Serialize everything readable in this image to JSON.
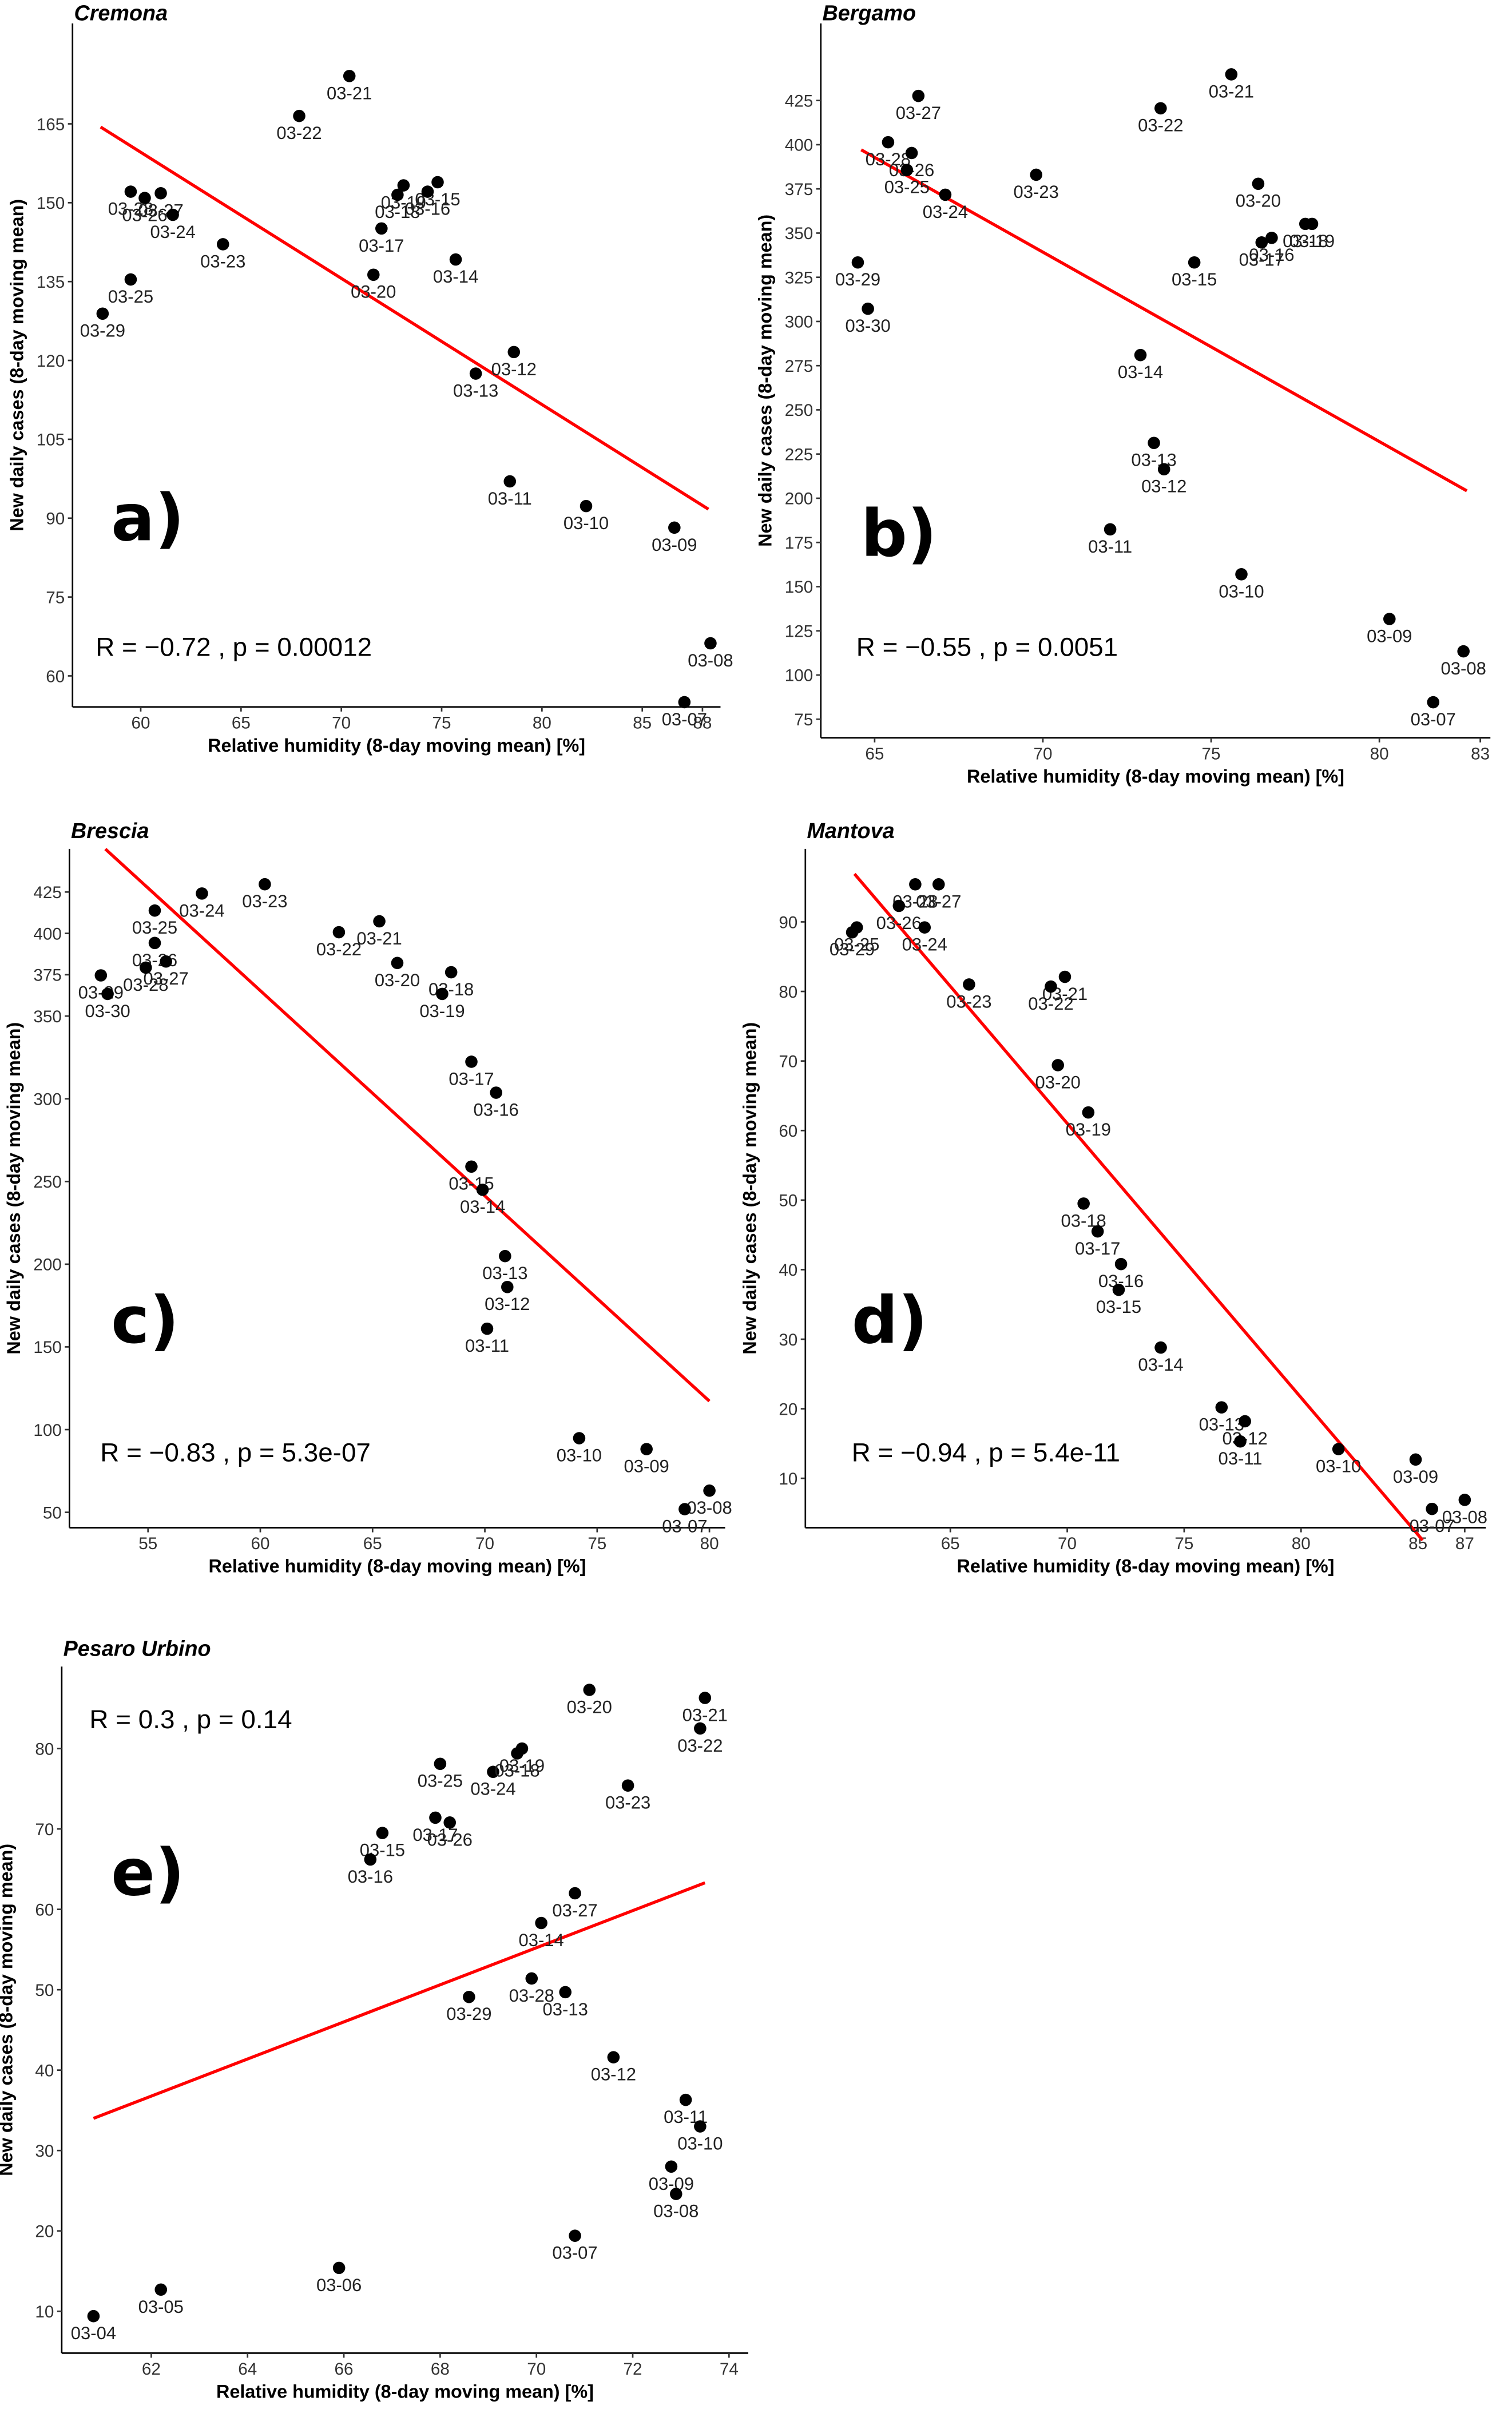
{
  "chart_data": [
    {
      "type": "scatter",
      "title": "Cremona",
      "panel_label": "a)",
      "annotation": "R = −0.72 , p = 0.00012",
      "x_label": "Relative humidity (8-day moving mean) [%]",
      "y_label": "New daily cases (8-day moving mean)",
      "color": "#000000",
      "trend_color": "#ff0000",
      "labels": [
        "03-21",
        "03-22",
        "03-28",
        "03-26",
        "03-27",
        "03-24",
        "03-23",
        "03-19",
        "03-15",
        "03-16",
        "03-18",
        "03-17",
        "03-14",
        "03-20",
        "03-25",
        "03-29",
        "03-12",
        "03-13",
        "03-11",
        "03-10",
        "03-09",
        "03-08",
        "03-07"
      ],
      "x": [
        70.4,
        67.9,
        59.5,
        60.2,
        61.0,
        61.6,
        64.1,
        73.1,
        74.8,
        74.3,
        72.8,
        72.0,
        75.7,
        71.6,
        59.5,
        58.1,
        78.6,
        76.7,
        78.4,
        82.2,
        86.6,
        88.4,
        87.1
      ],
      "y": [
        174.1,
        166.5,
        152.1,
        150.9,
        151.8,
        147.7,
        142.1,
        153.3,
        153.9,
        152.1,
        151.5,
        145.1,
        139.2,
        136.3,
        135.4,
        128.9,
        121.6,
        117.5,
        97.0,
        92.3,
        88.2,
        66.2,
        55.0
      ],
      "trend_x": [
        58.0,
        88.3
      ],
      "trend_y": [
        164.4,
        91.7
      ],
      "xlim": [
        56.6,
        88.9
      ],
      "ylim": [
        54.1,
        184.1
      ],
      "xticks": [
        60,
        65,
        70,
        75,
        80,
        85,
        88
      ],
      "yticks": [
        60,
        75,
        90,
        105,
        120,
        135,
        150,
        165
      ]
    },
    {
      "type": "scatter",
      "title": "Bergamo",
      "panel_label": "b)",
      "annotation": "R = −0.55 , p = 0.0051",
      "x_label": "Relative humidity (8-day moving mean) [%]",
      "y_label": "New daily cases (8-day moving mean)",
      "color": "#000000",
      "trend_color": "#ff0000",
      "labels": [
        "03-21",
        "03-27",
        "03-22",
        "03-28",
        "03-26",
        "03-25",
        "03-24",
        "03-23",
        "03-20",
        "03-18",
        "03-19",
        "03-16",
        "03-17",
        "03-15",
        "03-29",
        "03-30",
        "03-14",
        "03-13",
        "03-12",
        "03-11",
        "03-10",
        "03-09",
        "03-08",
        "03-07"
      ],
      "x": [
        75.6,
        66.3,
        73.5,
        65.4,
        66.1,
        65.96,
        67.1,
        69.8,
        76.4,
        77.8,
        78.0,
        76.8,
        76.5,
        74.5,
        64.5,
        64.8,
        72.9,
        73.3,
        73.6,
        72.0,
        75.9,
        80.3,
        82.5,
        81.6
      ],
      "y": [
        439.8,
        427.6,
        420.6,
        401.4,
        395.3,
        385.7,
        371.7,
        383.0,
        377.9,
        355.2,
        355.2,
        347.3,
        344.7,
        333.4,
        333.4,
        307.2,
        281.0,
        231.3,
        216.4,
        182.4,
        157.0,
        131.7,
        113.4,
        84.6
      ],
      "trend_x": [
        64.6,
        82.6
      ],
      "trend_y": [
        397.1,
        204.2
      ],
      "xlim": [
        63.4,
        83.3
      ],
      "ylim": [
        64.5,
        468.6
      ],
      "xticks": [
        65,
        70,
        75,
        80,
        83
      ],
      "yticks": [
        75,
        100,
        125,
        150,
        175,
        200,
        225,
        250,
        275,
        300,
        325,
        350,
        375,
        400,
        425
      ]
    },
    {
      "type": "scatter",
      "title": "Brescia",
      "panel_label": "c)",
      "annotation": "R = −0.83 , p = 5.3e-07",
      "x_label": "Relative humidity (8-day moving mean) [%]",
      "y_label": "New daily cases (8-day moving mean)",
      "color": "#000000",
      "trend_color": "#ff0000",
      "labels": [
        "03-23",
        "03-24",
        "03-21",
        "03-22",
        "03-25",
        "03-26",
        "03-27",
        "03-28",
        "03-29",
        "03-30",
        "03-20",
        "03-18",
        "03-19",
        "03-17",
        "03-16",
        "03-15",
        "03-14",
        "03-13",
        "03-12",
        "03-11",
        "03-10",
        "03-09",
        "03-08",
        "03-07"
      ],
      "x": [
        60.2,
        57.4,
        65.3,
        63.5,
        55.3,
        55.3,
        55.8,
        54.9,
        52.9,
        53.2,
        66.1,
        68.5,
        68.1,
        69.4,
        70.5,
        69.4,
        69.9,
        70.9,
        71.0,
        70.1,
        74.2,
        77.2,
        80.0,
        78.9
      ],
      "y": [
        429.7,
        424.1,
        407.3,
        400.7,
        413.8,
        394.2,
        383.0,
        379.3,
        374.6,
        363.4,
        382.1,
        376.5,
        363.4,
        322.4,
        303.7,
        259.0,
        245.0,
        204.9,
        186.2,
        161.0,
        94.8,
        88.2,
        63.1,
        51.9
      ],
      "trend_x": [
        53.1,
        80.0
      ],
      "trend_y": [
        451.0,
        117.2
      ],
      "xlim": [
        51.5,
        80.7
      ],
      "ylim": [
        40.7,
        451.1
      ],
      "xticks": [
        55,
        60,
        65,
        70,
        75,
        80
      ],
      "yticks": [
        50,
        100,
        150,
        200,
        250,
        300,
        350,
        375,
        400,
        425
      ]
    },
    {
      "type": "scatter",
      "title": "Mantova",
      "panel_label": "d)",
      "annotation": "R = −0.94 , p = 5.4e-11",
      "x_label": "Relative humidity (8-day moving mean) [%]",
      "y_label": "New daily cases (8-day moving mean)",
      "color": "#000000",
      "trend_color": "#ff0000",
      "labels": [
        "03-28",
        "03-27",
        "03-26",
        "03-24",
        "03-25",
        "03-29",
        "03-23",
        "03-21",
        "03-22",
        "03-20",
        "03-19",
        "03-18",
        "03-17",
        "03-16",
        "03-15",
        "03-14",
        "03-13",
        "03-12",
        "03-11",
        "03-10",
        "03-09",
        "03-08",
        "03-07"
      ],
      "x": [
        63.5,
        64.5,
        62.8,
        63.9,
        61.0,
        60.8,
        65.8,
        69.9,
        69.3,
        69.6,
        70.9,
        70.7,
        71.3,
        72.3,
        72.2,
        74.0,
        76.6,
        77.6,
        77.4,
        81.6,
        84.9,
        87.0,
        85.6
      ],
      "y": [
        95.4,
        95.4,
        92.3,
        89.2,
        89.2,
        88.5,
        81.0,
        82.1,
        80.7,
        69.4,
        62.6,
        49.5,
        45.5,
        40.8,
        37.1,
        28.8,
        20.2,
        18.2,
        15.3,
        14.2,
        12.7,
        6.9,
        5.6
      ],
      "trend_x": [
        60.9,
        85.2
      ],
      "trend_y": [
        96.9,
        1.1
      ],
      "xlim": [
        58.8,
        87.9
      ],
      "ylim": [
        2.9,
        100.5
      ],
      "xticks": [
        65,
        70,
        75,
        80,
        85,
        87
      ],
      "yticks": [
        10,
        20,
        30,
        40,
        50,
        60,
        70,
        80,
        90
      ]
    },
    {
      "type": "scatter",
      "title": "Pesaro Urbino",
      "panel_label": "e)",
      "annotation": "R = 0.3 , p = 0.14",
      "x_label": "Relative humidity (8-day moving mean) [%]",
      "y_label": "New daily cases (8-day moving mean)",
      "color": "#000000",
      "trend_color": "#ff0000",
      "labels": [
        "03-20",
        "03-21",
        "03-22",
        "03-19",
        "03-24",
        "03-18",
        "03-23",
        "03-25",
        "03-17",
        "03-26",
        "03-15",
        "03-16",
        "03-27",
        "03-14",
        "03-28",
        "03-29",
        "03-13",
        "03-12",
        "03-11",
        "03-10",
        "03-09",
        "03-08",
        "03-07",
        "03-06",
        "03-05",
        "03-04"
      ],
      "x": [
        71.1,
        73.5,
        73.4,
        69.7,
        69.1,
        69.6,
        71.9,
        68.0,
        67.9,
        68.2,
        66.8,
        66.55,
        70.8,
        70.1,
        69.9,
        68.6,
        70.6,
        71.6,
        73.1,
        73.4,
        72.8,
        72.9,
        70.8,
        65.9,
        62.2,
        60.8
      ],
      "y": [
        87.3,
        86.3,
        82.5,
        80.0,
        77.1,
        79.4,
        75.4,
        78.1,
        71.4,
        70.8,
        69.5,
        66.2,
        62.0,
        58.3,
        51.4,
        49.1,
        49.7,
        41.6,
        36.3,
        33.0,
        28.0,
        24.6,
        19.4,
        15.4,
        12.7,
        9.4
      ],
      "trend_x": [
        60.8,
        73.5
      ],
      "trend_y": [
        34.0,
        63.3
      ],
      "xlim": [
        60.14,
        74.4
      ],
      "ylim": [
        4.8,
        90.2
      ],
      "xticks": [
        62,
        64,
        66,
        68,
        70,
        72,
        74
      ],
      "yticks": [
        10,
        20,
        30,
        40,
        50,
        60,
        70,
        80
      ]
    }
  ]
}
